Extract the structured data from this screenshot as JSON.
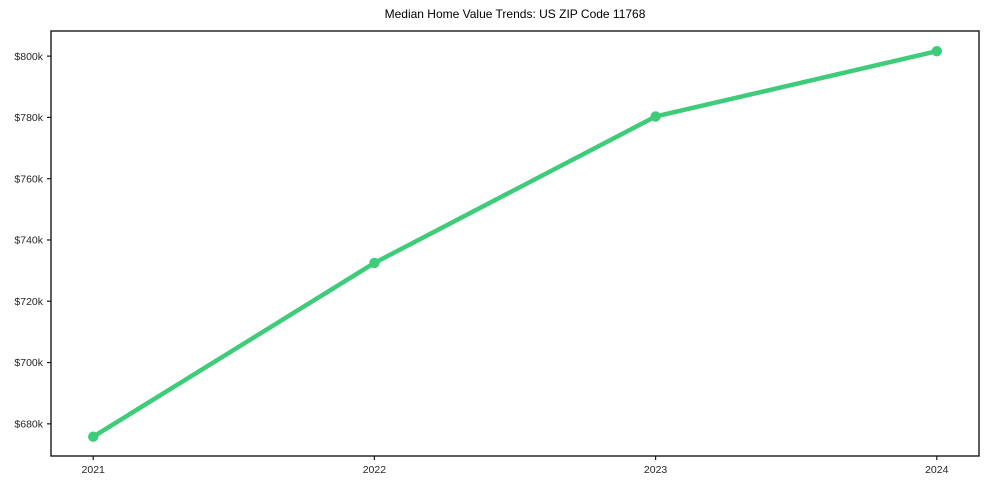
{
  "chart_data": {
    "type": "line",
    "title": "Median Home Value Trends: US ZIP Code 11768",
    "categories": [
      "2021",
      "2022",
      "2023",
      "2024"
    ],
    "series": [
      {
        "name": "Median Home Value",
        "values": [
          675800,
          732500,
          780300,
          801600
        ]
      }
    ],
    "y_ticks": [
      680000,
      700000,
      720000,
      740000,
      760000,
      780000,
      800000
    ],
    "y_tick_labels": [
      "$680k",
      "$700k",
      "$720k",
      "$740k",
      "$760k",
      "$780k",
      "$800k"
    ],
    "ylim": [
      669500,
      808200
    ],
    "xlabel": "",
    "ylabel": "",
    "grid": false,
    "legend": "none",
    "colors": {
      "line": "#3ecc7a",
      "marker": "#3ecc7a",
      "axis": "#1a1a1a",
      "tick_label": "#262626",
      "title": "#000000",
      "background": "#ffffff"
    }
  }
}
